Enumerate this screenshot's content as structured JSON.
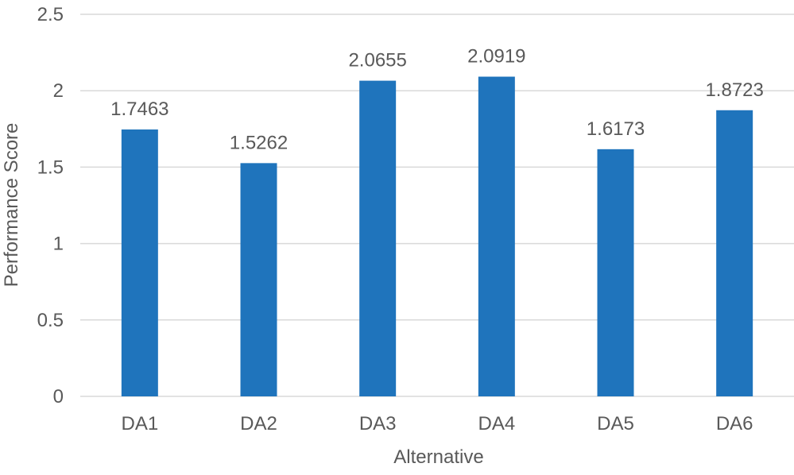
{
  "chart_data": {
    "type": "bar",
    "title": "",
    "xlabel": "Alternative",
    "ylabel": "Performance Score",
    "categories": [
      "DA1",
      "DA2",
      "DA3",
      "DA4",
      "DA5",
      "DA6"
    ],
    "values": [
      1.7463,
      1.5262,
      2.0655,
      2.0919,
      1.6173,
      1.8723
    ],
    "data_labels": [
      "1.7463",
      "1.5262",
      "2.0655",
      "2.0919",
      "1.6173",
      "1.8723"
    ],
    "ylim": [
      0,
      2.5
    ],
    "yticks": [
      0,
      0.5,
      1,
      1.5,
      2,
      2.5
    ],
    "ytick_labels": [
      "0",
      "0.5",
      "1",
      "1.5",
      "2",
      "2.5"
    ],
    "grid": true,
    "legend": "none",
    "colors": {
      "bar": "#1f74bc",
      "grid": "#d9d9d9",
      "text": "#595959"
    }
  }
}
